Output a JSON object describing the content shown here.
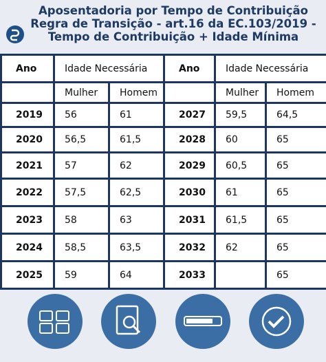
{
  "header": {
    "title": "Aposentadoria por Tempo de Contribuição Regra de Transição - art.16 da EC.103/2019 - Tempo de Contribuição + Idade Mínima"
  },
  "table": {
    "columns": [
      "Ano",
      "Idade Necessária",
      "Ano",
      "Idade Necessária"
    ],
    "subcolumns": [
      "Mulher",
      "Homem",
      "Mulher",
      "Homem"
    ],
    "rows": [
      [
        "2019",
        "56",
        "61",
        "2027",
        "59,5",
        "64,5"
      ],
      [
        "2020",
        "56,5",
        "61,5",
        "2028",
        "60",
        "65"
      ],
      [
        "2021",
        "57",
        "62",
        "2029",
        "60,5",
        "65"
      ],
      [
        "2022",
        "57,5",
        "62,5",
        "2030",
        "61",
        "65"
      ],
      [
        "2023",
        "58",
        "63",
        "2031",
        "61,5",
        "65"
      ],
      [
        "2024",
        "58,5",
        "63,5",
        "2032",
        "62",
        "65"
      ],
      [
        "2025",
        "59",
        "64",
        "2033",
        null,
        "65"
      ]
    ]
  }
}
